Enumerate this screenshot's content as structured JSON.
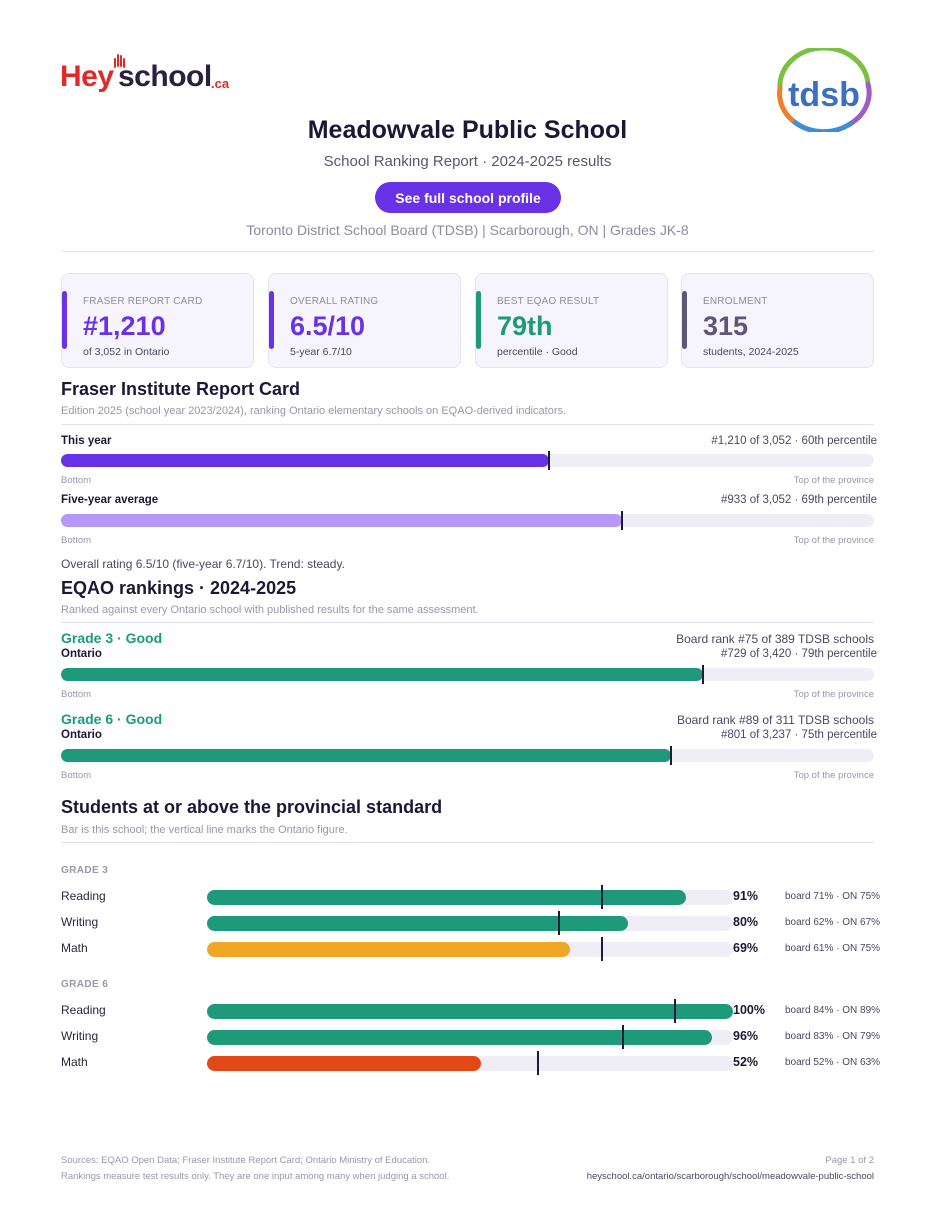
{
  "brand": {
    "logo_hey": "Hey",
    "logo_school": "school",
    "logo_ca": ".ca",
    "board_logo_text": "tdsb"
  },
  "header": {
    "school_name": "Meadowvale Public School",
    "subtitle": "School Ranking Report  ·  2024-2025 results",
    "profile_button": "See full school profile",
    "meta": "Toronto District School Board (TDSB)  |  Scarborough, ON  |  Grades JK-8"
  },
  "stats": [
    {
      "label": "FRASER REPORT CARD",
      "value": "#1,210",
      "note": "of 3,052 in Ontario",
      "color": "#6a32e6"
    },
    {
      "label": "OVERALL RATING",
      "value": "6.5/10",
      "note": "5-year 6.7/10",
      "color": "#6a32e6"
    },
    {
      "label": "BEST EQAO RESULT",
      "value": "79th",
      "note": "percentile  ·  Good",
      "color": "#1e9a7b"
    },
    {
      "label": "ENROLMENT",
      "value": "315",
      "note": "students, 2024-2025",
      "color": "#5d5676"
    }
  ],
  "fraser": {
    "heading": "Fraser Institute Report Card",
    "description": "Edition 2025 (school year 2023/2024), ranking Ontario elementary schools on EQAO-derived indicators.",
    "rows": [
      {
        "label": "This year",
        "right": "#1,210 of 3,052  ·  60th percentile",
        "percentile": 60,
        "color": "#6a32e6"
      },
      {
        "label": "Five-year average",
        "right": "#933 of 3,052  ·  69th percentile",
        "percentile": 69,
        "color": "#b598f7"
      }
    ],
    "axis_left": "Bottom",
    "axis_right": "Top of the province",
    "trend": "Overall rating 6.5/10 (five-year 6.7/10). Trend: steady."
  },
  "eqao": {
    "heading": "EQAO rankings  ·  2024-2025",
    "description": "Ranked against every Ontario school with published results for the same assessment.",
    "grades": [
      {
        "title": "Grade 3  ·  Good",
        "board_rank": "Board rank #75 of 389 TDSB schools",
        "scope": "Ontario",
        "right": "#729 of 3,420  ·  79th percentile",
        "percentile": 79
      },
      {
        "title": "Grade 6  ·  Good",
        "board_rank": "Board rank #89 of 311 TDSB schools",
        "scope": "Ontario",
        "right": "#801 of 3,237  ·  75th percentile",
        "percentile": 75
      }
    ],
    "axis_left": "Bottom",
    "axis_right": "Top of the province",
    "bar_color": "#1e9a7b"
  },
  "standards": {
    "heading": "Students at or above the provincial standard",
    "description": "Bar is this school; the vertical line marks the Ontario figure.",
    "groups": [
      {
        "title": "GRADE 3",
        "rows": [
          {
            "subject": "Reading",
            "value": 91,
            "pct": "91%",
            "ontario": 75,
            "compare": "board 71%  ·  ON 75%",
            "color": "#1e9a7b"
          },
          {
            "subject": "Writing",
            "value": 80,
            "pct": "80%",
            "ontario": 67,
            "compare": "board 62%  ·  ON 67%",
            "color": "#1e9a7b"
          },
          {
            "subject": "Math",
            "value": 69,
            "pct": "69%",
            "ontario": 75,
            "compare": "board 61%  ·  ON 75%",
            "color": "#f0a824"
          }
        ]
      },
      {
        "title": "GRADE 6",
        "rows": [
          {
            "subject": "Reading",
            "value": 100,
            "pct": "100%",
            "ontario": 89,
            "compare": "board 84%  ·  ON 89%",
            "color": "#1e9a7b"
          },
          {
            "subject": "Writing",
            "value": 96,
            "pct": "96%",
            "ontario": 79,
            "compare": "board 83%  ·  ON 79%",
            "color": "#1e9a7b"
          },
          {
            "subject": "Math",
            "value": 52,
            "pct": "52%",
            "ontario": 63,
            "compare": "board 52%  ·  ON 63%",
            "color": "#e34817"
          }
        ]
      }
    ]
  },
  "footer": {
    "sources": "Sources: EQAO Open Data; Fraser Institute Report Card; Ontario Ministry of Education.",
    "disclaimer": "Rankings measure test results only. They are one input among many when judging a school.",
    "page": "Page 1 of 2",
    "url": "heyschool.ca/ontario/scarborough/school/meadowvale-public-school"
  }
}
